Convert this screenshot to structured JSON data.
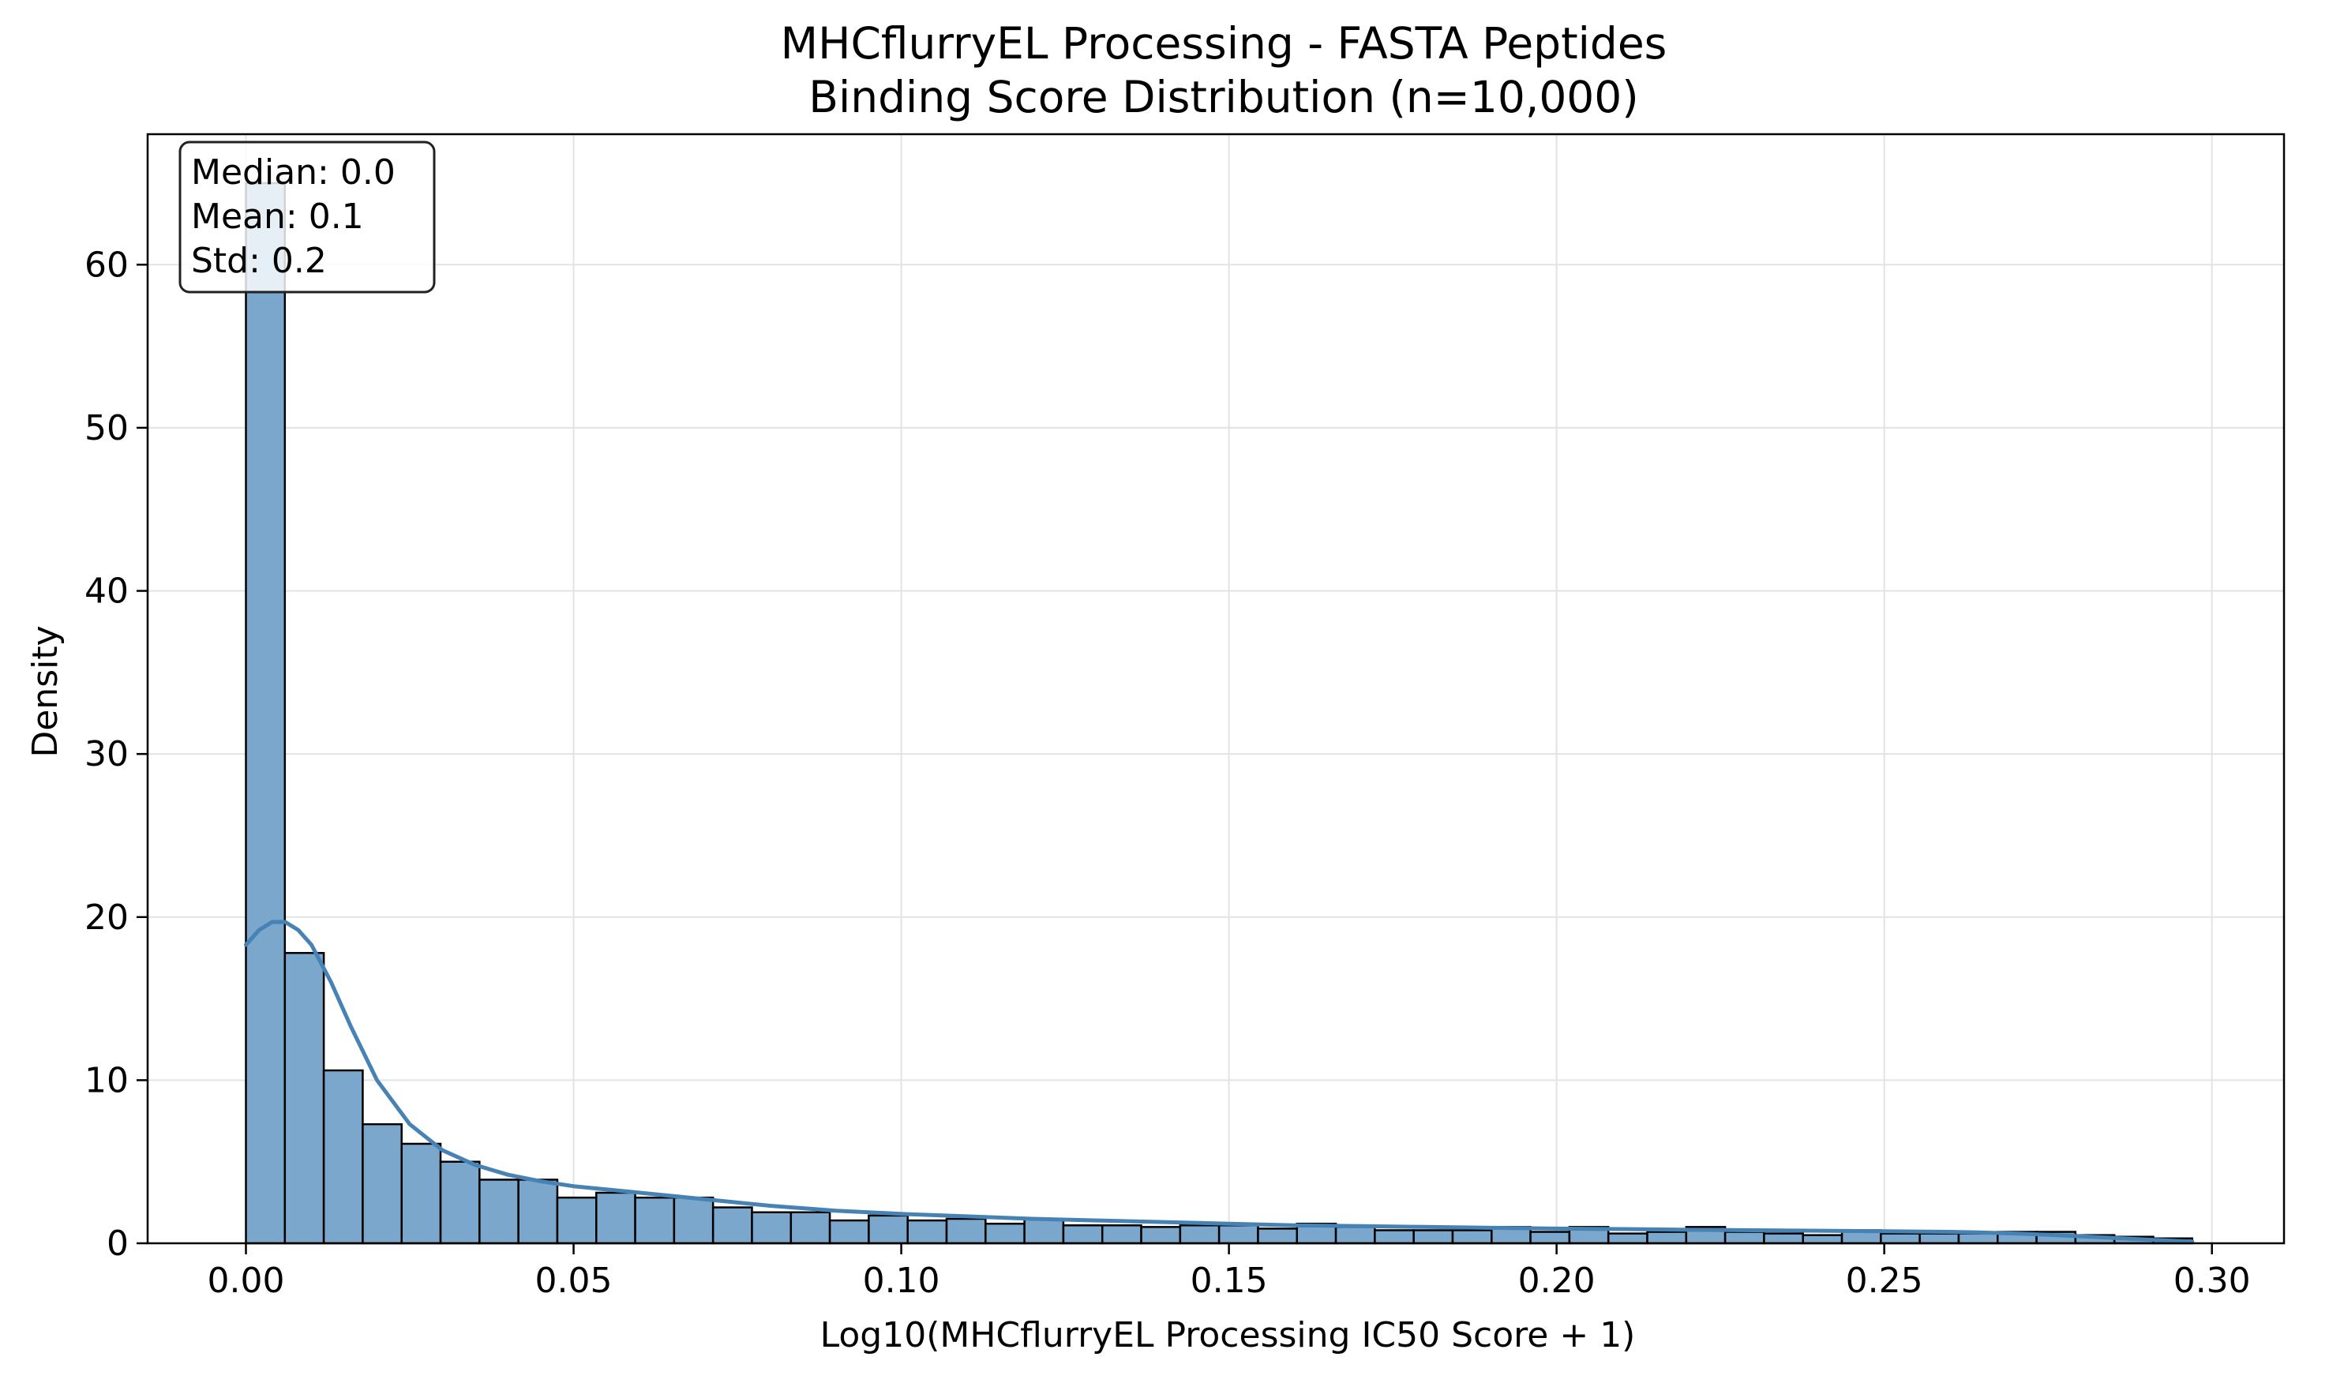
{
  "chart_data": {
    "type": "bar",
    "title": "MHCflurryEL Processing - FASTA Peptides",
    "subtitle": "Binding Score Distribution (n=10,000)",
    "xlabel": "Log10(MHCflurryEL Processing IC50 Score + 1)",
    "ylabel": "Density",
    "xlim": [
      -0.015,
      0.311
    ],
    "ylim": [
      0,
      68
    ],
    "xticks": [
      0.0,
      0.05,
      0.1,
      0.15,
      0.2,
      0.25,
      0.3
    ],
    "xtick_labels": [
      "0.00",
      "0.05",
      "0.10",
      "0.15",
      "0.20",
      "0.25",
      "0.30"
    ],
    "yticks": [
      0,
      10,
      20,
      30,
      40,
      50,
      60
    ],
    "ytick_labels": [
      "0",
      "10",
      "20",
      "30",
      "40",
      "50",
      "60"
    ],
    "grid": true,
    "bin_start": 0.0,
    "bin_width": 0.00594,
    "values": [
      65.0,
      17.8,
      10.6,
      7.3,
      6.1,
      5.0,
      3.9,
      3.9,
      2.8,
      3.1,
      2.8,
      2.8,
      2.2,
      1.9,
      1.9,
      1.4,
      1.7,
      1.4,
      1.5,
      1.2,
      1.5,
      1.1,
      1.1,
      1.0,
      1.1,
      1.1,
      0.9,
      1.2,
      1.0,
      0.8,
      0.8,
      0.8,
      1.0,
      0.7,
      1.0,
      0.6,
      0.7,
      1.0,
      0.7,
      0.6,
      0.5,
      0.8,
      0.6,
      0.6,
      0.6,
      0.7,
      0.7,
      0.5,
      0.4,
      0.3
    ],
    "kde": {
      "name": "",
      "x": [
        0.0,
        0.002,
        0.004,
        0.006,
        0.008,
        0.01,
        0.013,
        0.016,
        0.02,
        0.025,
        0.03,
        0.035,
        0.04,
        0.045,
        0.05,
        0.055,
        0.06,
        0.07,
        0.08,
        0.09,
        0.1,
        0.11,
        0.12,
        0.13,
        0.14,
        0.15,
        0.16,
        0.17,
        0.18,
        0.19,
        0.2,
        0.21,
        0.22,
        0.23,
        0.24,
        0.25,
        0.26,
        0.265,
        0.27,
        0.275,
        0.28,
        0.285,
        0.29,
        0.297
      ],
      "y": [
        18.3,
        19.2,
        19.7,
        19.7,
        19.2,
        18.3,
        16.0,
        13.3,
        10.0,
        7.3,
        5.7,
        4.8,
        4.2,
        3.8,
        3.5,
        3.3,
        3.1,
        2.7,
        2.3,
        2.0,
        1.8,
        1.65,
        1.5,
        1.4,
        1.3,
        1.2,
        1.1,
        1.05,
        1.0,
        0.95,
        0.9,
        0.87,
        0.83,
        0.8,
        0.77,
        0.74,
        0.7,
        0.66,
        0.6,
        0.52,
        0.43,
        0.33,
        0.23,
        0.1
      ]
    },
    "annotation": {
      "lines": [
        "Median: 0.0",
        "Mean: 0.1",
        "Std: 0.2"
      ],
      "placement": "top-left"
    },
    "colors": {
      "bar_fill": "#7aa7cb",
      "bar_edge": "#000000",
      "kde_line": "#4682b4",
      "grid": "#e3e3e3"
    }
  }
}
